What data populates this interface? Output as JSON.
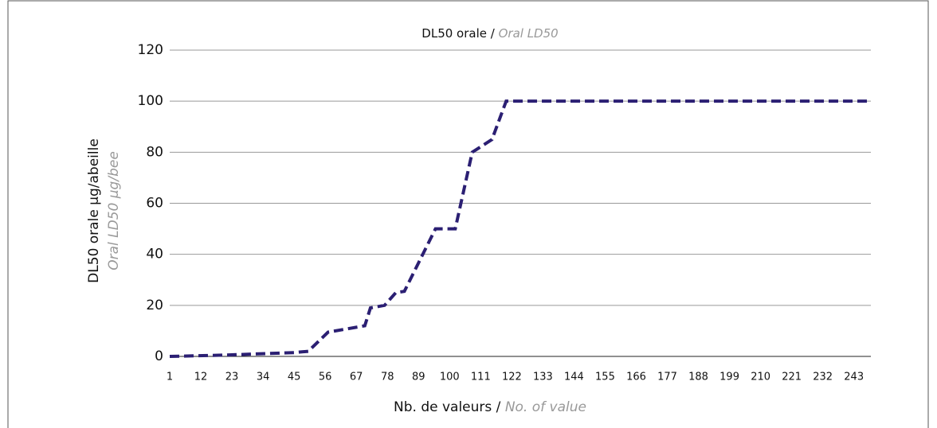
{
  "chart_data": {
    "type": "line",
    "title": "DL50 orale /",
    "title_translation": "Oral LD50",
    "x_label": "Nb. de valeurs /",
    "x_label_translation": "No. of value",
    "y_label": "DL50 orale µg/abeille",
    "y_label_translation": "Oral LD50 µg/bee",
    "x": [
      1,
      20,
      45,
      50,
      57,
      70,
      72,
      77,
      81,
      84,
      95,
      102,
      108,
      115,
      120,
      249
    ],
    "series": [
      {
        "name": "DL50 orale",
        "color": "#2b1f73",
        "values": [
          0,
          0.5,
          1.5,
          2,
          9.5,
          12,
          19,
          20,
          25,
          25.5,
          50,
          50,
          80,
          85,
          100,
          100
        ]
      }
    ],
    "xlim": [
      1,
      249
    ],
    "xticks": [
      1,
      12,
      23,
      34,
      45,
      56,
      67,
      78,
      89,
      100,
      111,
      122,
      133,
      144,
      155,
      166,
      177,
      188,
      199,
      210,
      221,
      232,
      243
    ],
    "ylim": [
      0,
      120
    ],
    "yticks": [
      0,
      20,
      40,
      60,
      80,
      100,
      120
    ],
    "grid": true,
    "line_style": "dashed"
  }
}
